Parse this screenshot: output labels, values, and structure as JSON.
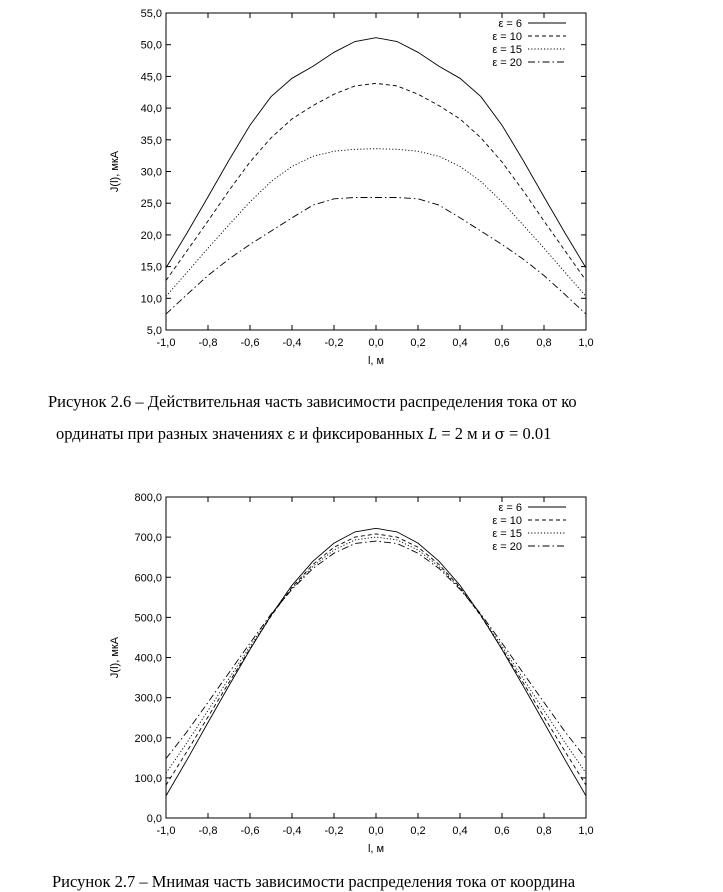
{
  "figure1": {
    "caption_line1": "Рисунок 2.6 – Действительная часть зависимости распределения тока от ко",
    "caption_line2": {
      "part1": "ординаты при разных значениях ",
      "eps": "ε",
      "part2": " и фиксированных ",
      "L": "L",
      "part3": " = 2 м и ",
      "sigma": "σ",
      "part4": " = 0.01"
    }
  },
  "figure2": {
    "caption": "Рисунок 2.7 – Мнимая часть зависимости распределения тока от координа"
  },
  "chart_data": [
    {
      "type": "line",
      "xlabel": "l, м",
      "ylabel": "J(l), мкА",
      "xlim": [
        -1.0,
        1.0
      ],
      "ylim": [
        5.0,
        55.0
      ],
      "xticks": [
        "-1,0",
        "-0,8",
        "-0,6",
        "-0,4",
        "-0,2",
        "0,0",
        "0,2",
        "0,4",
        "0,6",
        "0,8",
        "1,0"
      ],
      "yticks": [
        "5,0",
        "10,0",
        "15,0",
        "20,0",
        "25,0",
        "30,0",
        "35,0",
        "40,0",
        "45,0",
        "50,0",
        "55,0"
      ],
      "grid": false,
      "legend_position": "top-right",
      "x": [
        -1.0,
        -0.9,
        -0.8,
        -0.7,
        -0.6,
        -0.5,
        -0.4,
        -0.3,
        -0.2,
        -0.1,
        0.0,
        0.1,
        0.2,
        0.3,
        0.4,
        0.5,
        0.6,
        0.7,
        0.8,
        0.9,
        1.0
      ],
      "series": [
        {
          "name": "ε = 6",
          "dash": "solid",
          "values": [
            14.8,
            20.3,
            26.0,
            31.8,
            37.3,
            41.8,
            44.7,
            46.6,
            48.8,
            50.5,
            51.1,
            50.5,
            48.8,
            46.6,
            44.7,
            41.8,
            37.3,
            31.8,
            26.0,
            20.3,
            14.8
          ]
        },
        {
          "name": "ε = 10",
          "dash": "dashed",
          "values": [
            12.8,
            17.5,
            22.2,
            27.0,
            31.5,
            35.3,
            38.3,
            40.4,
            42.2,
            43.5,
            43.9,
            43.5,
            42.2,
            40.4,
            38.3,
            35.3,
            31.5,
            27.0,
            22.2,
            17.5,
            12.8
          ]
        },
        {
          "name": "ε = 15",
          "dash": "dotted",
          "values": [
            10.3,
            14.1,
            17.9,
            21.6,
            25.2,
            28.4,
            30.8,
            32.4,
            33.2,
            33.5,
            33.6,
            33.5,
            33.2,
            32.4,
            30.8,
            28.4,
            25.2,
            21.6,
            17.9,
            14.1,
            10.3
          ]
        },
        {
          "name": "ε = 20",
          "dash": "dashdot",
          "values": [
            7.5,
            10.6,
            13.6,
            16.2,
            18.5,
            20.6,
            22.7,
            24.7,
            25.7,
            25.9,
            25.9,
            25.9,
            25.7,
            24.7,
            22.7,
            20.6,
            18.5,
            16.2,
            13.6,
            10.6,
            7.5
          ]
        }
      ]
    },
    {
      "type": "line",
      "xlabel": "l, м",
      "ylabel": "J(l), мкА",
      "xlim": [
        -1.0,
        1.0
      ],
      "ylim": [
        0.0,
        800.0
      ],
      "xticks": [
        "-1,0",
        "-0,8",
        "-0,6",
        "-0,4",
        "-0,2",
        "0,0",
        "0,2",
        "0,4",
        "0,6",
        "0,8",
        "1,0"
      ],
      "yticks": [
        "0,0",
        "100,0",
        "200,0",
        "300,0",
        "400,0",
        "500,0",
        "600,0",
        "700,0",
        "800,0"
      ],
      "grid": false,
      "legend_position": "top-right",
      "x": [
        -1.0,
        -0.9,
        -0.8,
        -0.7,
        -0.6,
        -0.5,
        -0.4,
        -0.3,
        -0.2,
        -0.1,
        0.0,
        0.1,
        0.2,
        0.3,
        0.4,
        0.5,
        0.6,
        0.7,
        0.8,
        0.9,
        1.0
      ],
      "series": [
        {
          "name": "ε = 6",
          "dash": "solid",
          "values": [
            55,
            145,
            238,
            330,
            420,
            505,
            580,
            640,
            685,
            713,
            722,
            713,
            685,
            640,
            580,
            505,
            420,
            330,
            238,
            145,
            55
          ]
        },
        {
          "name": "ε = 10",
          "dash": "dashed",
          "values": [
            82,
            166,
            252,
            338,
            422,
            503,
            575,
            632,
            675,
            700,
            708,
            700,
            675,
            632,
            575,
            503,
            422,
            338,
            252,
            166,
            82
          ]
        },
        {
          "name": "ε = 15",
          "dash": "dotted",
          "values": [
            112,
            188,
            268,
            348,
            428,
            505,
            572,
            627,
            668,
            693,
            700,
            693,
            668,
            627,
            572,
            505,
            428,
            348,
            268,
            188,
            112
          ]
        },
        {
          "name": "ε = 20",
          "dash": "dashdot",
          "values": [
            148,
            215,
            288,
            362,
            436,
            508,
            570,
            622,
            660,
            684,
            690,
            684,
            660,
            622,
            570,
            508,
            436,
            362,
            288,
            215,
            148
          ]
        }
      ]
    }
  ]
}
